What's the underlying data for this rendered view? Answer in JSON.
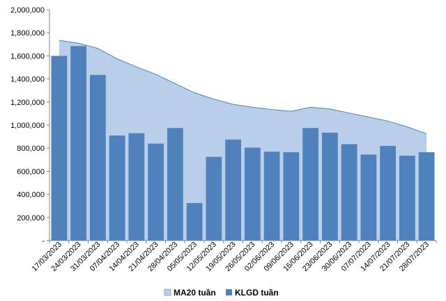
{
  "chart_data": {
    "type": "bar",
    "categories": [
      "17/03/2023",
      "24/03/2023",
      "31/03/2023",
      "07/04/2023",
      "14/04/2023",
      "21/04/2023",
      "28/04/2023",
      "05/05/2023",
      "12/05/2023",
      "19/05/2023",
      "26/05/2023",
      "02/06/2023",
      "09/06/2023",
      "16/06/2023",
      "23/06/2023",
      "30/06/2023",
      "07/07/2023",
      "14/07/2023",
      "21/07/2023",
      "28/07/2023"
    ],
    "series": [
      {
        "name": "MA20 tuần",
        "kind": "area",
        "color": "#b9cfe9",
        "edge_color": "#4f81bd",
        "values": [
          1735000,
          1710000,
          1665000,
          1575000,
          1505000,
          1440000,
          1360000,
          1280000,
          1225000,
          1180000,
          1155000,
          1135000,
          1120000,
          1155000,
          1140000,
          1105000,
          1070000,
          1035000,
          985000,
          925000
        ]
      },
      {
        "name": "KLGD tuần",
        "kind": "bar",
        "color": "#4f81bd",
        "values": [
          1600000,
          1685000,
          1435000,
          910000,
          930000,
          840000,
          975000,
          325000,
          725000,
          875000,
          805000,
          770000,
          765000,
          975000,
          935000,
          835000,
          745000,
          820000,
          735000,
          765000
        ]
      }
    ],
    "ylim": [
      0,
      2000000
    ],
    "yticks": [
      0,
      200000,
      400000,
      600000,
      800000,
      1000000,
      1200000,
      1400000,
      1600000,
      1800000,
      2000000
    ],
    "ytick_labels": [
      "-",
      "200,000",
      "400,000",
      "600,000",
      "800,000",
      "1,000,000",
      "1,200,000",
      "1,400,000",
      "1,600,000",
      "1,800,000",
      "2,000,000"
    ],
    "grid": false,
    "legend": "bottom"
  }
}
